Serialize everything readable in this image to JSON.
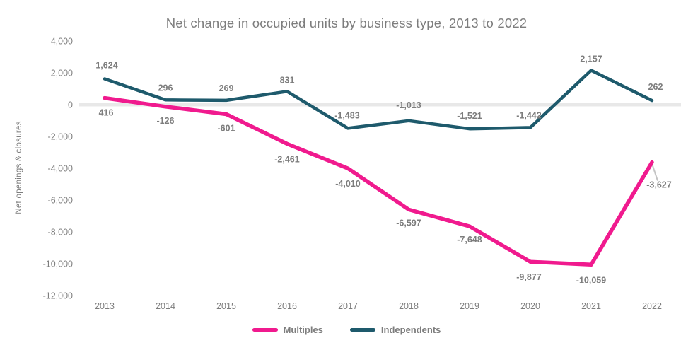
{
  "colors": {
    "multiples": "#F01A8E",
    "independents": "#1E5A6C",
    "text": "#7D7D7D",
    "zero_line": "#E8E8E8",
    "callout_line": "#C4C4C4",
    "background": "#FFFFFF"
  },
  "chart_data": {
    "type": "line",
    "title": "Net change in occupied units by business type, 2013 to 2022",
    "ylabel": "Net openings & closures",
    "xlabel": "",
    "x": [
      2013,
      2014,
      2015,
      2016,
      2017,
      2018,
      2019,
      2020,
      2021,
      2022
    ],
    "ylim": [
      -12000,
      4000
    ],
    "grid": "zero-line-only",
    "legend_position": "bottom",
    "yticks": [
      {
        "value": 4000,
        "label": "4,000"
      },
      {
        "value": 2000,
        "label": "2,000"
      },
      {
        "value": 0,
        "label": "0"
      },
      {
        "value": -2000,
        "label": "-2,000"
      },
      {
        "value": -4000,
        "label": "-4,000"
      },
      {
        "value": -6000,
        "label": "-6,000"
      },
      {
        "value": -8000,
        "label": "-8,000"
      },
      {
        "value": -10000,
        "label": "-10,000"
      },
      {
        "value": -12000,
        "label": "-12,000"
      }
    ],
    "series": [
      {
        "name": "Multiples",
        "color": "#F01A8E",
        "values": [
          416,
          -126,
          -601,
          -2461,
          -4010,
          -6597,
          -7648,
          -9877,
          -10059,
          -3627
        ],
        "labels": [
          "416",
          "-126",
          "-601",
          "-2,461",
          "-4,010",
          "-6,597",
          "-7,648",
          "-9,877",
          "-10,059",
          "-3,627"
        ]
      },
      {
        "name": "Independents",
        "color": "#1E5A6C",
        "values": [
          1624,
          296,
          269,
          831,
          -1483,
          -1013,
          -1521,
          -1442,
          2157,
          262
        ],
        "labels": [
          "1,624",
          "296",
          "269",
          "831",
          "-1,483",
          "-1,013",
          "-1,521",
          "-1,442",
          "2,157",
          "262"
        ]
      }
    ],
    "callout": {
      "series": "Multiples",
      "x": 2022,
      "label": "-3,627"
    }
  }
}
